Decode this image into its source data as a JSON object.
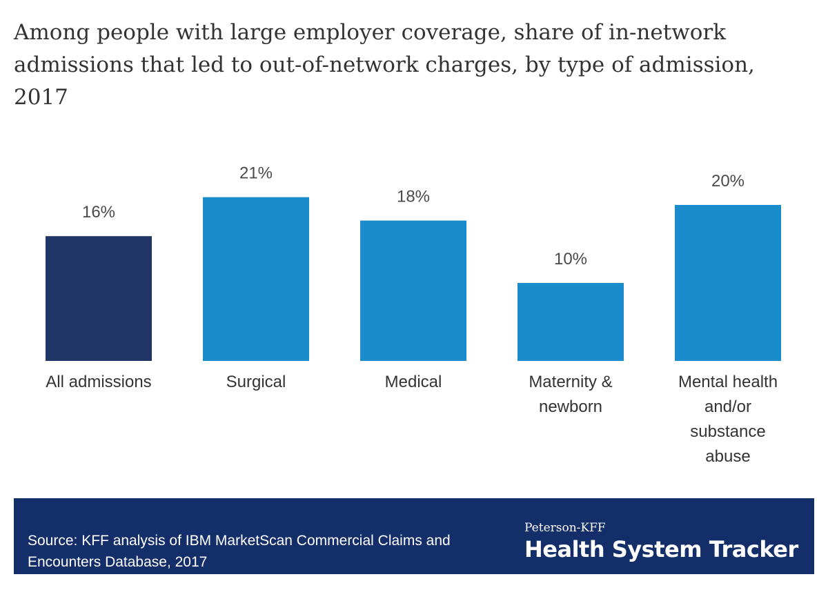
{
  "title": "Among people with large employer coverage, share of in-network admissions that led to out-of-network charges, by type of admission, 2017",
  "source": "Source: KFF analysis of IBM MarketScan Commercial Claims and Encounters Database, 2017",
  "brand": {
    "top": "Peterson-KFF",
    "main": "Health System Tracker"
  },
  "colors": {
    "highlight_bar": "#1f3566",
    "bar": "#1a8ccc",
    "footer_bg": "#142e6a"
  },
  "chart_data": {
    "type": "bar",
    "categories": [
      [
        "All admissions"
      ],
      [
        "Surgical"
      ],
      [
        "Medical"
      ],
      [
        "Maternity &",
        "newborn"
      ],
      [
        "Mental health",
        "and/or",
        "substance",
        "abuse"
      ]
    ],
    "values": [
      16,
      21,
      18,
      10,
      20
    ],
    "value_labels": [
      "16%",
      "21%",
      "18%",
      "10%",
      "20%"
    ],
    "highlight_index": 0,
    "ylim": [
      0,
      25
    ],
    "grid": false,
    "legend": "none",
    "unit": "%"
  }
}
